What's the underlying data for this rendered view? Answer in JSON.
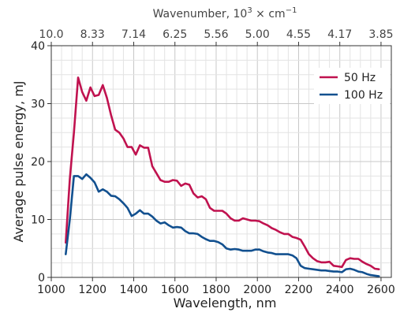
{
  "chart_data": {
    "type": "line",
    "xlabel": "Wavelength, nm",
    "ylabel": "Average pulse energy, mJ",
    "x_top_label_parts": {
      "prefix": "Wavenumber, 10",
      "superscript_1": "3",
      "middle": " × cm",
      "superscript_2": "−1"
    },
    "xlim": [
      1000,
      2650
    ],
    "ylim": [
      0,
      40
    ],
    "x_ticks": [
      "1000",
      "1200",
      "1400",
      "1600",
      "1800",
      "2000",
      "2200",
      "2400",
      "2600"
    ],
    "y_ticks": [
      "0",
      "10",
      "20",
      "30",
      "40"
    ],
    "x_top_ticks": [
      {
        "label": "10.0",
        "at": 1000
      },
      {
        "label": "8.33",
        "at": 1200
      },
      {
        "label": "7.14",
        "at": 1400
      },
      {
        "label": "6.25",
        "at": 1600
      },
      {
        "label": "5.56",
        "at": 1800
      },
      {
        "label": "5.00",
        "at": 2000
      },
      {
        "label": "4.55",
        "at": 2200
      },
      {
        "label": "4.17",
        "at": 2400
      },
      {
        "label": "3.85",
        "at": 2600
      }
    ],
    "grid": true,
    "legend_position": "top-right",
    "series": [
      {
        "name": "50 Hz",
        "color": "#c0124f",
        "x": [
          1070,
          1090,
          1110,
          1130,
          1150,
          1170,
          1190,
          1210,
          1230,
          1250,
          1270,
          1290,
          1310,
          1330,
          1350,
          1370,
          1390,
          1410,
          1430,
          1450,
          1470,
          1490,
          1510,
          1530,
          1550,
          1570,
          1590,
          1610,
          1630,
          1650,
          1670,
          1690,
          1710,
          1730,
          1750,
          1770,
          1790,
          1810,
          1830,
          1850,
          1870,
          1890,
          1910,
          1930,
          1950,
          1970,
          1990,
          2010,
          2030,
          2050,
          2070,
          2090,
          2110,
          2130,
          2150,
          2170,
          2190,
          2210,
          2230,
          2250,
          2270,
          2290,
          2310,
          2330,
          2350,
          2370,
          2390,
          2410,
          2430,
          2450,
          2470,
          2490,
          2510,
          2530,
          2550,
          2570,
          2590
        ],
        "y": [
          6.0,
          17.0,
          25.0,
          34.5,
          32.0,
          30.5,
          32.8,
          31.3,
          31.5,
          33.2,
          31.0,
          28.0,
          25.5,
          25.0,
          24.0,
          22.5,
          22.5,
          21.2,
          22.8,
          22.4,
          22.4,
          19.2,
          18.0,
          16.8,
          16.5,
          16.5,
          16.8,
          16.7,
          15.8,
          16.2,
          16.0,
          14.5,
          13.8,
          14.0,
          13.5,
          12.0,
          11.5,
          11.5,
          11.5,
          11.0,
          10.2,
          9.8,
          9.8,
          10.2,
          10.0,
          9.8,
          9.8,
          9.7,
          9.3,
          9.0,
          8.5,
          8.2,
          7.8,
          7.5,
          7.5,
          7.0,
          6.8,
          6.5,
          5.3,
          4.0,
          3.3,
          2.8,
          2.6,
          2.6,
          2.7,
          2.0,
          1.9,
          1.8,
          3.0,
          3.3,
          3.2,
          3.2,
          2.7,
          2.3,
          2.0,
          1.5,
          1.4
        ]
      },
      {
        "name": "100 Hz",
        "color": "#12508f",
        "x": [
          1070,
          1090,
          1110,
          1130,
          1150,
          1170,
          1190,
          1210,
          1230,
          1250,
          1270,
          1290,
          1310,
          1330,
          1350,
          1370,
          1390,
          1410,
          1430,
          1450,
          1470,
          1490,
          1510,
          1530,
          1550,
          1570,
          1590,
          1610,
          1630,
          1650,
          1670,
          1690,
          1710,
          1730,
          1750,
          1770,
          1790,
          1810,
          1830,
          1850,
          1870,
          1890,
          1910,
          1930,
          1950,
          1970,
          1990,
          2010,
          2030,
          2050,
          2070,
          2090,
          2110,
          2130,
          2150,
          2170,
          2190,
          2210,
          2230,
          2250,
          2270,
          2290,
          2310,
          2330,
          2350,
          2370,
          2390,
          2410,
          2430,
          2450,
          2470,
          2490,
          2510,
          2530,
          2550,
          2570,
          2590
        ],
        "y": [
          4.0,
          10.0,
          17.5,
          17.5,
          17.0,
          17.8,
          17.2,
          16.4,
          14.8,
          15.2,
          14.8,
          14.1,
          14.0,
          13.5,
          12.8,
          12.0,
          10.6,
          11.0,
          11.6,
          11.0,
          11.0,
          10.5,
          9.8,
          9.3,
          9.5,
          9.0,
          8.6,
          8.7,
          8.6,
          8.0,
          7.6,
          7.6,
          7.5,
          7.0,
          6.6,
          6.3,
          6.3,
          6.1,
          5.7,
          5.0,
          4.8,
          4.9,
          4.8,
          4.6,
          4.6,
          4.6,
          4.8,
          4.8,
          4.5,
          4.3,
          4.2,
          4.0,
          4.0,
          4.0,
          4.0,
          3.8,
          3.3,
          2.0,
          1.6,
          1.5,
          1.4,
          1.3,
          1.2,
          1.2,
          1.1,
          1.0,
          1.0,
          0.9,
          1.4,
          1.5,
          1.3,
          1.0,
          0.9,
          0.6,
          0.4,
          0.3,
          0.2
        ]
      }
    ]
  }
}
